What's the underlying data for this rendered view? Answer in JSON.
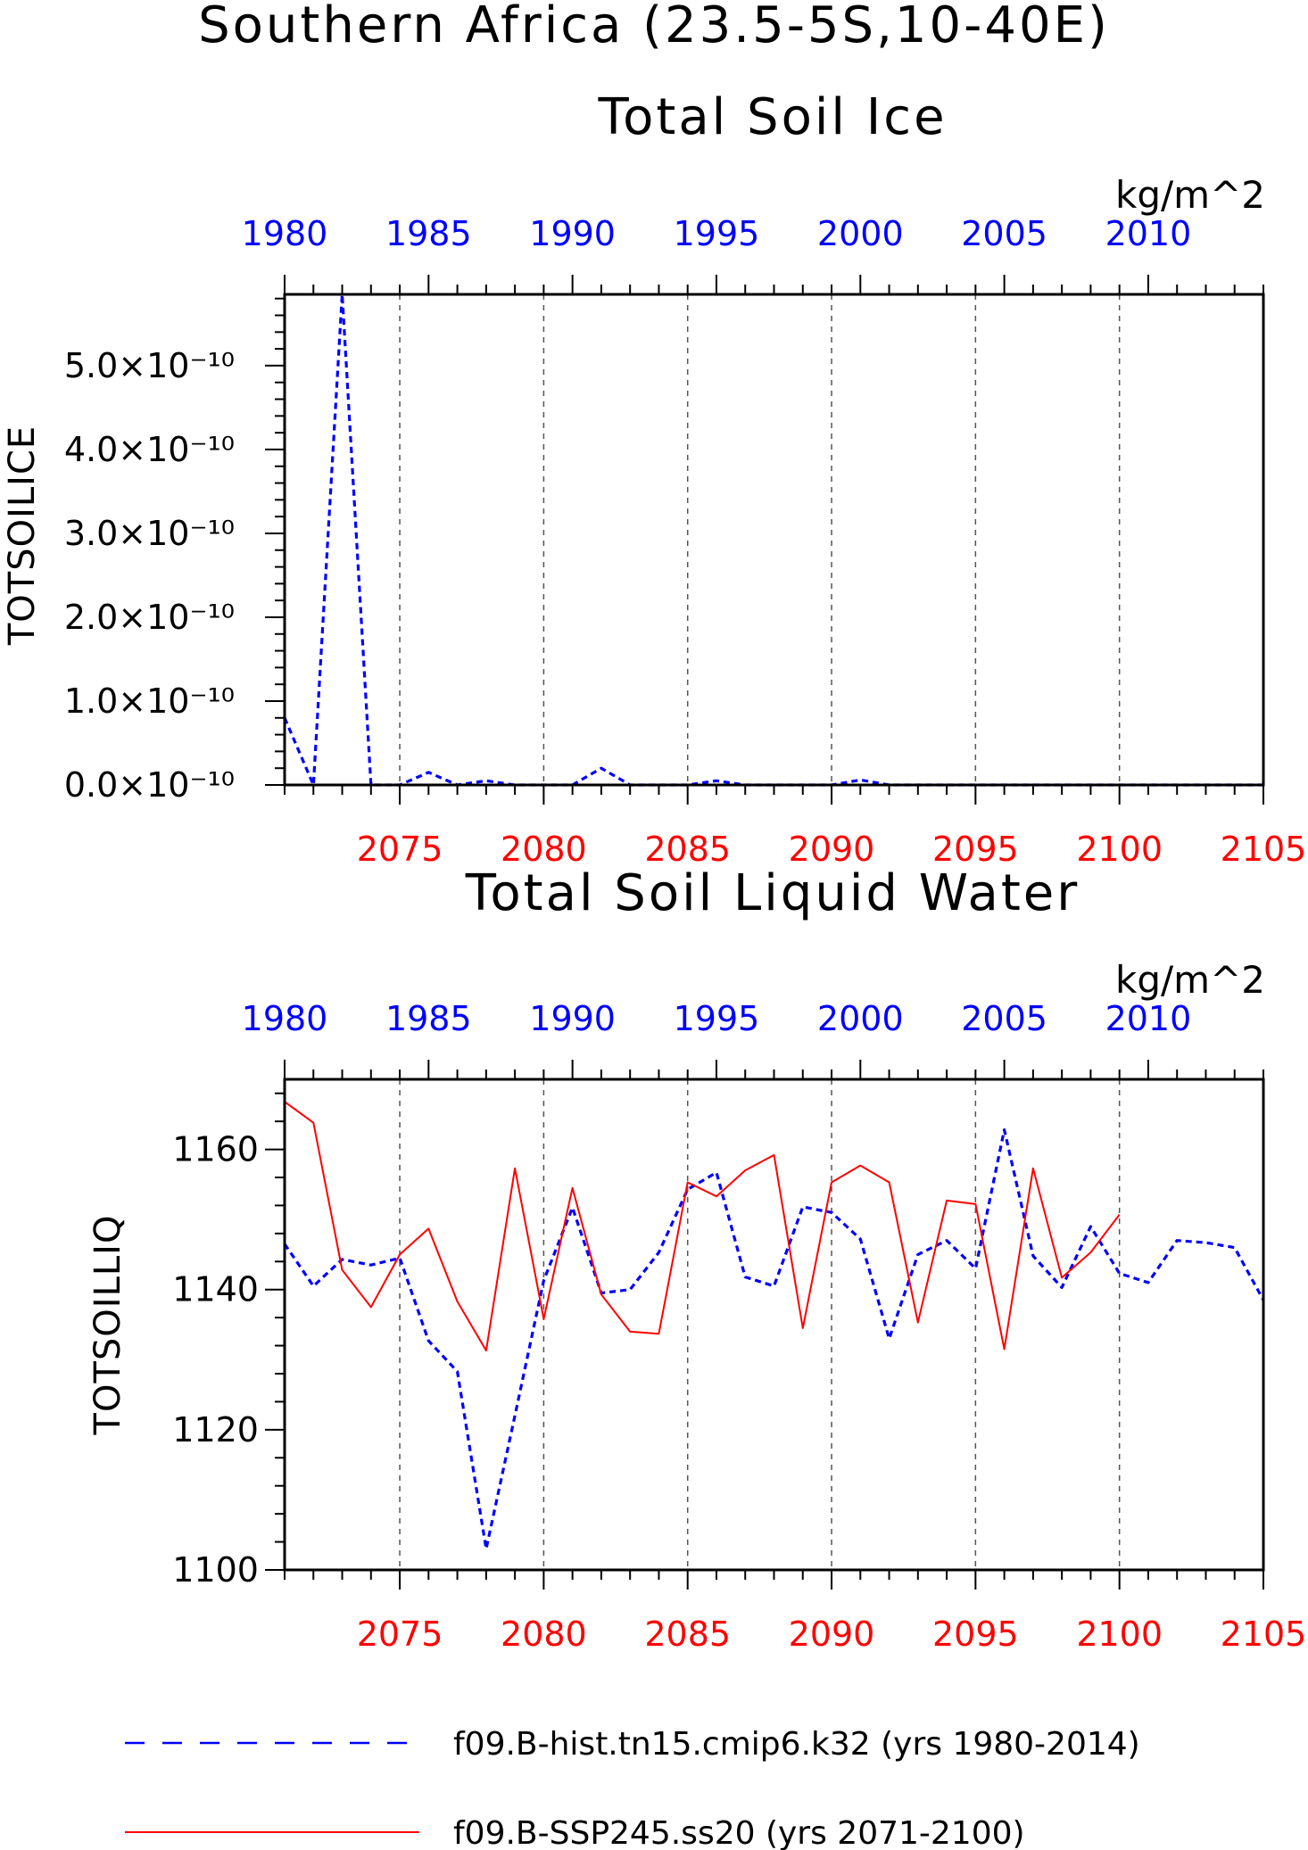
{
  "figure_title": "Southern Africa (23.5-5S,10-40E)",
  "colors": {
    "hist": "#0000ff",
    "ssp": "#ff0000",
    "axis": "#000000"
  },
  "legend": {
    "hist_label": "f09.B-hist.tn15.cmip6.k32 (yrs 1980-2014)",
    "ssp_label": "f09.B-SSP245.ss20 (yrs 2071-2100)"
  },
  "chart_data": [
    {
      "type": "line",
      "title": "Total Soil Ice",
      "units": "kg/m^2",
      "ylabel": "TOTSOILICE",
      "ylim": [
        0,
        5.85e-10
      ],
      "yticks": [
        0,
        1e-10,
        2e-10,
        3e-10,
        4e-10,
        5e-10
      ],
      "ytick_labels": [
        "0.0×10⁻¹⁰",
        "1.0×10⁻¹⁰",
        "2.0×10⁻¹⁰",
        "3.0×10⁻¹⁰",
        "4.0×10⁻¹⁰",
        "5.0×10⁻¹⁰"
      ],
      "top_axis": {
        "range": [
          1980,
          2014
        ],
        "ticks": [
          1980,
          1985,
          1990,
          1995,
          2000,
          2005,
          2010
        ],
        "labels": [
          "1980",
          "1985",
          "1990",
          "1995",
          "2000",
          "2005",
          "2010"
        ]
      },
      "bottom_axis": {
        "range": [
          2071,
          2105
        ],
        "ticks": [
          2075,
          2080,
          2085,
          2090,
          2095,
          2100,
          2105
        ],
        "labels": [
          "2075",
          "2080",
          "2085",
          "2090",
          "2095",
          "2100",
          "2105"
        ]
      },
      "grid": "vertical dashed at bottom-axis major ticks",
      "series": [
        {
          "axis": "top",
          "style": "dashed",
          "x": [
            1980,
            1981,
            1982,
            1983,
            1984,
            1985,
            1986,
            1987,
            1988,
            1989,
            1990,
            1991,
            1992,
            1993,
            1994,
            1995,
            1996,
            1997,
            1998,
            1999,
            2000,
            2001,
            2002,
            2003,
            2004,
            2005,
            2006,
            2007,
            2008,
            2009,
            2010,
            2011,
            2012,
            2013,
            2014
          ],
          "values": [
            8e-11,
            0,
            5.85e-10,
            0,
            0,
            1.5e-11,
            0,
            5e-12,
            0,
            0,
            0,
            2e-11,
            0,
            0,
            0,
            5e-12,
            0,
            0,
            0,
            0,
            6e-12,
            0,
            0,
            0,
            0,
            0,
            0,
            0,
            0,
            0,
            0,
            0,
            0,
            0,
            0
          ]
        },
        {
          "axis": "bottom",
          "style": "solid",
          "x": [
            2071,
            2072,
            2073,
            2074,
            2075,
            2076,
            2077,
            2078,
            2079,
            2080,
            2081,
            2082,
            2083,
            2084,
            2085,
            2086,
            2087,
            2088,
            2089,
            2090,
            2091,
            2092,
            2093,
            2094,
            2095,
            2096,
            2097,
            2098,
            2099,
            2100
          ],
          "values": [
            0,
            0,
            0,
            0,
            0,
            0,
            0,
            0,
            0,
            0,
            0,
            0,
            0,
            0,
            0,
            0,
            0,
            0,
            0,
            0,
            0,
            0,
            0,
            0,
            0,
            0,
            0,
            0,
            0,
            0
          ]
        }
      ]
    },
    {
      "type": "line",
      "title": "Total Soil Liquid Water",
      "units": "kg/m^2",
      "ylabel": "TOTSOILLIQ",
      "ylim": [
        1100,
        1170
      ],
      "yticks": [
        1100,
        1120,
        1140,
        1160
      ],
      "ytick_labels": [
        "1100",
        "1120",
        "1140",
        "1160"
      ],
      "top_axis": {
        "range": [
          1980,
          2014
        ],
        "ticks": [
          1980,
          1985,
          1990,
          1995,
          2000,
          2005,
          2010
        ],
        "labels": [
          "1980",
          "1985",
          "1990",
          "1995",
          "2000",
          "2005",
          "2010"
        ]
      },
      "bottom_axis": {
        "range": [
          2071,
          2105
        ],
        "ticks": [
          2075,
          2080,
          2085,
          2090,
          2095,
          2100,
          2105
        ],
        "labels": [
          "2075",
          "2080",
          "2085",
          "2090",
          "2095",
          "2100",
          "2105"
        ]
      },
      "grid": "vertical dashed at bottom-axis major ticks",
      "series": [
        {
          "axis": "top",
          "style": "dashed",
          "x": [
            1980,
            1981,
            1982,
            1983,
            1984,
            1985,
            1986,
            1987,
            1988,
            1989,
            1990,
            1991,
            1992,
            1993,
            1994,
            1995,
            1996,
            1997,
            1998,
            1999,
            2000,
            2001,
            2002,
            2003,
            2004,
            2005,
            2006,
            2007,
            2008,
            2009,
            2010,
            2011,
            2012,
            2013,
            2014
          ],
          "values": [
            1146.5,
            1140.5,
            1144.3,
            1143.5,
            1144.5,
            1132.7,
            1128.3,
            1103.0,
            1122.0,
            1141.3,
            1151.7,
            1139.5,
            1140.0,
            1145.3,
            1154.3,
            1156.7,
            1141.8,
            1140.5,
            1151.8,
            1151.0,
            1147.2,
            1133.0,
            1145.0,
            1147.0,
            1143.0,
            1162.8,
            1144.8,
            1140.3,
            1149.0,
            1142.3,
            1141.0,
            1147.0,
            1146.7,
            1146.0,
            1138.5
          ]
        },
        {
          "axis": "bottom",
          "style": "solid",
          "x": [
            2071,
            2072,
            2073,
            2074,
            2075,
            2076,
            2077,
            2078,
            2079,
            2080,
            2081,
            2082,
            2083,
            2084,
            2085,
            2086,
            2087,
            2088,
            2089,
            2090,
            2091,
            2092,
            2093,
            2094,
            2095,
            2096,
            2097,
            2098,
            2099,
            2100
          ],
          "values": [
            1166.8,
            1163.8,
            1142.8,
            1137.5,
            1145.0,
            1148.7,
            1138.3,
            1131.3,
            1157.3,
            1135.8,
            1154.5,
            1139.3,
            1134.0,
            1133.7,
            1155.3,
            1153.3,
            1157.0,
            1159.2,
            1134.5,
            1155.3,
            1157.7,
            1155.3,
            1135.3,
            1152.7,
            1152.2,
            1131.5,
            1157.3,
            1141.7,
            1145.3,
            1150.7
          ]
        }
      ]
    }
  ]
}
